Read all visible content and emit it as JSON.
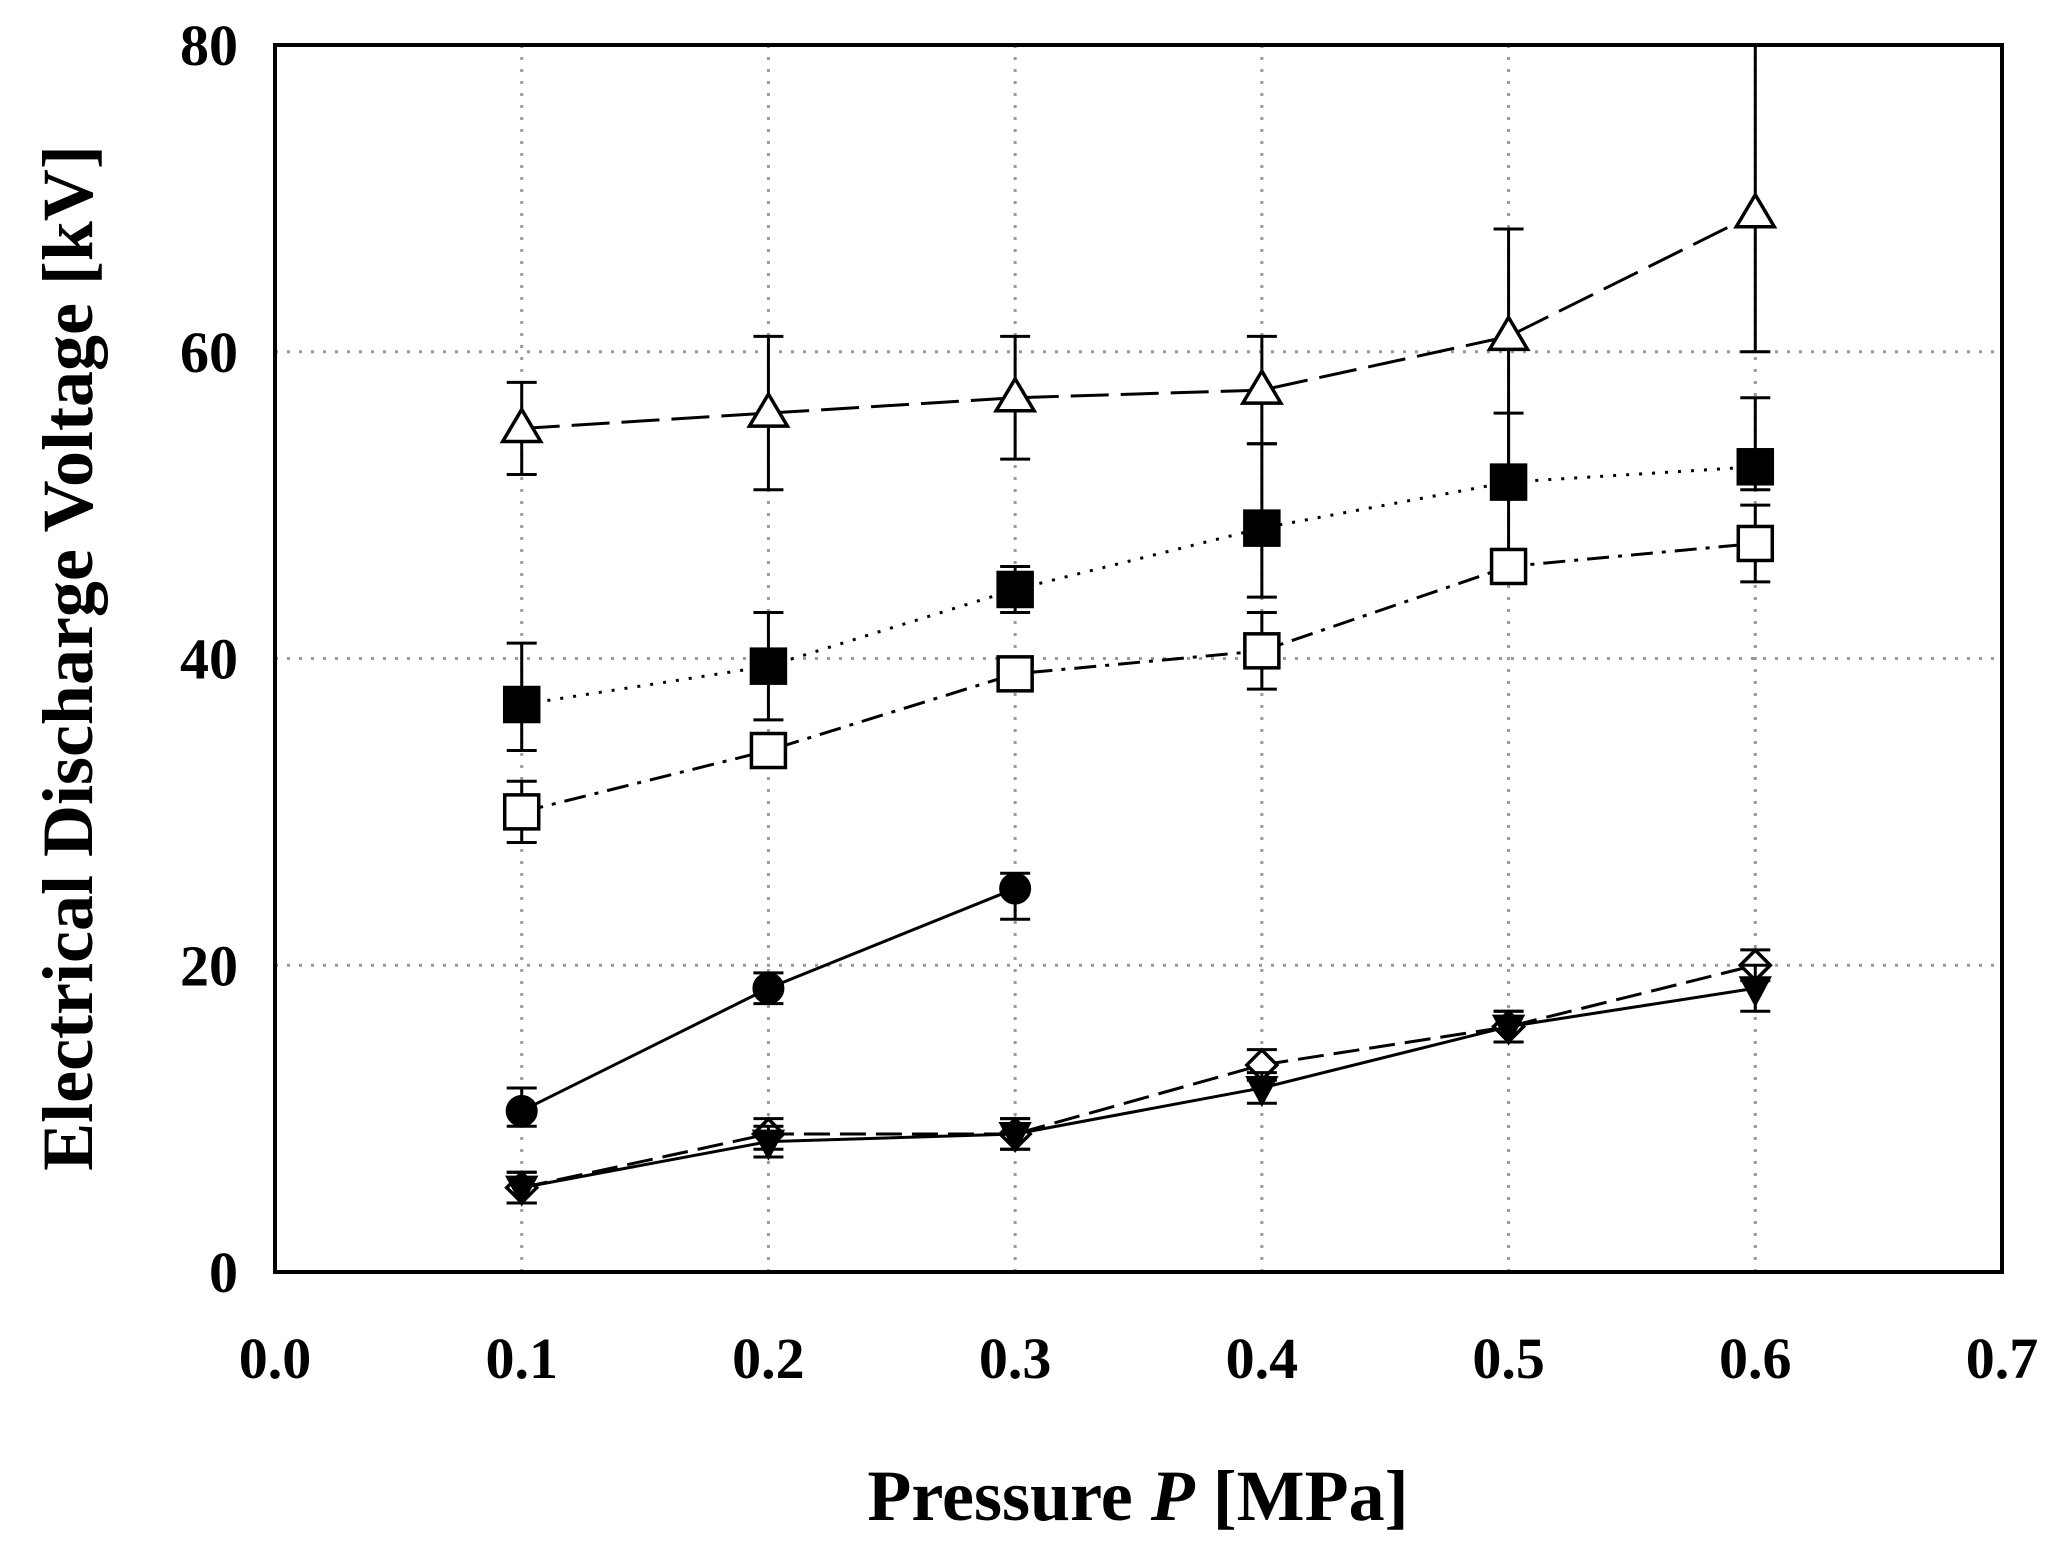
{
  "chart_data": {
    "type": "line",
    "title": "",
    "xlabel_prefix": "Pressure ",
    "xlabel_var": "P",
    "xlabel_suffix": " [MPa]",
    "ylabel": "Electrical Discharge Voltage [kV]",
    "xlim": [
      0.0,
      0.7
    ],
    "ylim": [
      0,
      80
    ],
    "xticks": [
      0.0,
      0.1,
      0.2,
      0.3,
      0.4,
      0.5,
      0.6,
      0.7
    ],
    "xtick_labels": [
      "0.0",
      "0.1",
      "0.2",
      "0.3",
      "0.4",
      "0.5",
      "0.6",
      "0.7"
    ],
    "yticks": [
      0,
      20,
      40,
      60,
      80
    ],
    "ytick_labels": [
      "0",
      "20",
      "40",
      "60",
      "80"
    ],
    "grid": true,
    "series": [
      {
        "name": "open-triangle",
        "marker": "triangle-open",
        "line": "longdash",
        "x": [
          0.1,
          0.2,
          0.3,
          0.4,
          0.5,
          0.6
        ],
        "y": [
          55,
          56,
          57,
          57.5,
          61,
          69
        ],
        "err_low": [
          52,
          51,
          53,
          54,
          51,
          60
        ],
        "err_high": [
          58,
          61,
          61,
          61,
          68,
          80
        ]
      },
      {
        "name": "filled-square",
        "marker": "square-filled",
        "line": "dotted",
        "x": [
          0.1,
          0.2,
          0.3,
          0.4,
          0.5,
          0.6
        ],
        "y": [
          37,
          39.5,
          44.5,
          48.5,
          51.5,
          52.5
        ],
        "err_low": [
          34,
          36,
          43,
          44,
          46,
          51
        ],
        "err_high": [
          41,
          43,
          46,
          54,
          56,
          57
        ]
      },
      {
        "name": "open-square",
        "marker": "square-open",
        "line": "dashdot",
        "x": [
          0.1,
          0.2,
          0.3,
          0.4,
          0.5,
          0.6
        ],
        "y": [
          30,
          34,
          39,
          40.5,
          46,
          47.5
        ],
        "err_low": [
          28,
          33,
          38,
          38,
          45,
          45
        ],
        "err_high": [
          32,
          35,
          40,
          43,
          47,
          50
        ]
      },
      {
        "name": "filled-circle",
        "marker": "circle-filled",
        "line": "solid",
        "x": [
          0.1,
          0.2,
          0.3
        ],
        "y": [
          10.5,
          18.5,
          25
        ],
        "err_low": [
          9.5,
          17.5,
          23
        ],
        "err_high": [
          12,
          19.5,
          26
        ]
      },
      {
        "name": "open-diamond",
        "marker": "diamond-open",
        "line": "dashed",
        "x": [
          0.1,
          0.2,
          0.3,
          0.4,
          0.5,
          0.6
        ],
        "y": [
          5.5,
          9,
          9,
          13.5,
          16,
          20
        ],
        "err_low": [
          4.5,
          8,
          8,
          12.5,
          15,
          19
        ],
        "err_high": [
          6.5,
          10,
          10,
          14.5,
          17,
          21
        ]
      },
      {
        "name": "filled-down-triangle",
        "marker": "triangle-down-filled",
        "line": "solid",
        "x": [
          0.1,
          0.2,
          0.3,
          0.4,
          0.5,
          0.6
        ],
        "y": [
          5.5,
          8.5,
          9,
          12,
          16,
          18.5
        ],
        "err_low": [
          4.5,
          7.5,
          8,
          11,
          15,
          17
        ],
        "err_high": [
          6.5,
          9.5,
          10,
          13,
          17,
          20
        ]
      }
    ]
  }
}
